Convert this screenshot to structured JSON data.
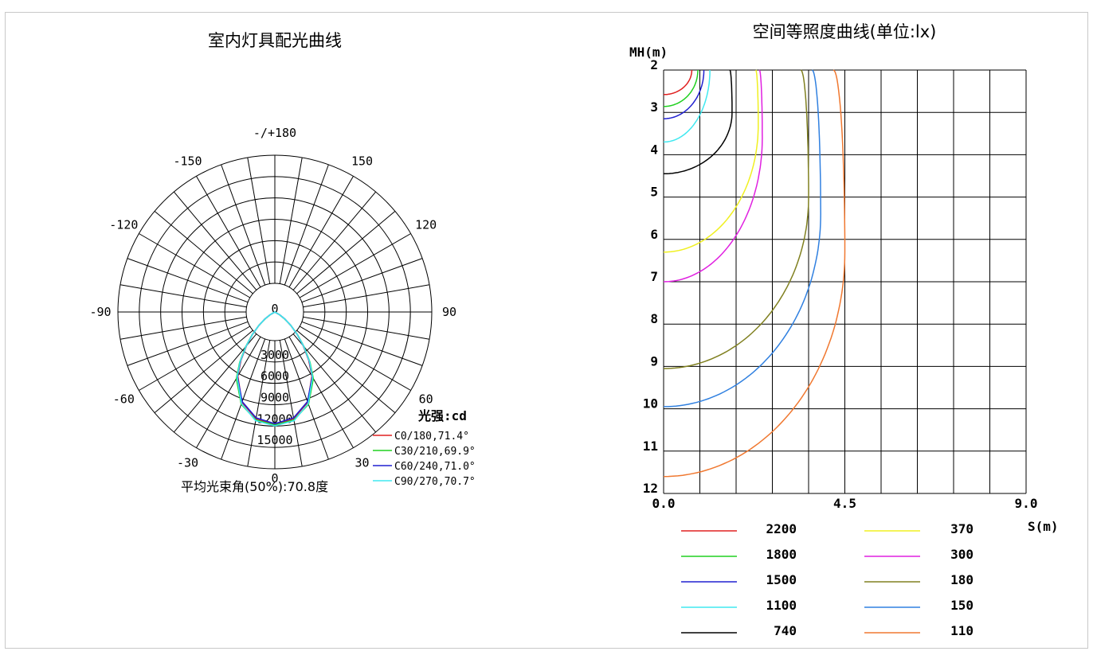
{
  "chart_data": [
    {
      "type": "polar",
      "title": "室内灯具配光曲线",
      "angle_labels": [
        {
          "text": "-/+180",
          "angle": 180
        },
        {
          "text": "150",
          "angle": 150
        },
        {
          "text": "-150",
          "angle": -150
        },
        {
          "text": "120",
          "angle": 120
        },
        {
          "text": "-120",
          "angle": -120
        },
        {
          "text": "90",
          "angle": 90
        },
        {
          "text": "-90",
          "angle": -90
        },
        {
          "text": "60",
          "angle": 60
        },
        {
          "text": "-60",
          "angle": -60
        },
        {
          "text": "30",
          "angle": 30
        },
        {
          "text": "-30",
          "angle": -30
        },
        {
          "text": "0",
          "angle": 0
        }
      ],
      "radial_ticks": [
        "0",
        "3000",
        "6000",
        "9000",
        "12000",
        "15000"
      ],
      "radial_max": 18000,
      "legend_title": "光强:cd",
      "beam_angle_label": "平均光束角(50%):70.8度",
      "series": [
        {
          "name": "C0/180,71.4°",
          "color": "#e02020",
          "angles": [
            0,
            10,
            20,
            30,
            35,
            40,
            45,
            50,
            55,
            60
          ],
          "values": [
            15800,
            15200,
            13500,
            10400,
            8300,
            6200,
            4400,
            2900,
            1700,
            800
          ]
        },
        {
          "name": "C30/210,69.9°",
          "color": "#20d020",
          "angles": [
            0,
            10,
            20,
            30,
            35,
            40,
            45,
            50,
            55,
            60
          ],
          "values": [
            15900,
            15400,
            13800,
            10800,
            8600,
            6400,
            4500,
            2900,
            1600,
            700
          ]
        },
        {
          "name": "C60/240,71.0°",
          "color": "#2020d0",
          "angles": [
            0,
            10,
            20,
            30,
            35,
            40,
            45,
            50,
            55,
            60
          ],
          "values": [
            15700,
            15100,
            13400,
            10500,
            8400,
            6300,
            4400,
            2900,
            1700,
            800
          ]
        },
        {
          "name": "C90/270,70.7°",
          "color": "#40e8f0",
          "angles": [
            0,
            10,
            20,
            30,
            35,
            40,
            45,
            50,
            55,
            60
          ],
          "values": [
            16000,
            15500,
            13700,
            10600,
            8500,
            6300,
            4400,
            2900,
            1700,
            800
          ]
        }
      ]
    },
    {
      "type": "contour",
      "title": "空间等照度曲线(单位:lx)",
      "xlabel": "S(m)",
      "ylabel": "MH(m)",
      "x_ticks": [
        "0.0",
        "4.5",
        "9.0"
      ],
      "xlim": [
        0,
        9
      ],
      "y_ticks": [
        "2",
        "3",
        "4",
        "5",
        "6",
        "7",
        "8",
        "9",
        "10",
        "11",
        "12"
      ],
      "ylim": [
        2,
        12
      ],
      "grid": true,
      "series": [
        {
          "name": "2200",
          "color": "#e02020",
          "k": 0.77
        },
        {
          "name": "1800",
          "color": "#20d020",
          "k": 0.82
        },
        {
          "name": "1500",
          "color": "#2020d0",
          "k": 0.85
        },
        {
          "name": "1100",
          "color": "#40e8f0",
          "k": 0.91
        },
        {
          "name": "740",
          "color": "#000000",
          "k": 0.95
        },
        {
          "name": "370",
          "color": "#f0f020",
          "k": 0.58
        },
        {
          "name": "300",
          "color": "#e020e0",
          "k": 0.52
        },
        {
          "name": "180",
          "color": "#808020",
          "k": 0.51
        },
        {
          "name": "150",
          "color": "#3080e0",
          "k": 0.46
        },
        {
          "name": "110",
          "color": "#f07830",
          "k": 0.42
        }
      ],
      "contour_shape": [
        {
          "name": "2200",
          "peak_s": 0.7,
          "peak_mh": 2.0,
          "mh0": 2.58
        },
        {
          "name": "1800",
          "peak_s": 0.85,
          "peak_mh": 2.0,
          "mh0": 2.86
        },
        {
          "name": "1500",
          "peak_s": 1.0,
          "peak_mh": 2.0,
          "mh0": 3.15
        },
        {
          "name": "1100",
          "peak_s": 1.15,
          "peak_mh": 2.0,
          "mh0": 3.7
        },
        {
          "name": "740",
          "peak_s": 1.7,
          "peak_mh": 3.0,
          "mh0": 4.45
        },
        {
          "name": "370",
          "peak_s": 2.35,
          "peak_mh": 3.3,
          "mh0": 6.3
        },
        {
          "name": "300",
          "peak_s": 2.45,
          "peak_mh": 3.6,
          "mh0": 7.0
        },
        {
          "name": "180",
          "peak_s": 3.6,
          "peak_mh": 5.0,
          "mh0": 9.05
        },
        {
          "name": "150",
          "peak_s": 3.9,
          "peak_mh": 5.4,
          "mh0": 9.95
        },
        {
          "name": "110",
          "peak_s": 4.5,
          "peak_mh": 6.3,
          "mh0": 11.6
        }
      ]
    }
  ]
}
